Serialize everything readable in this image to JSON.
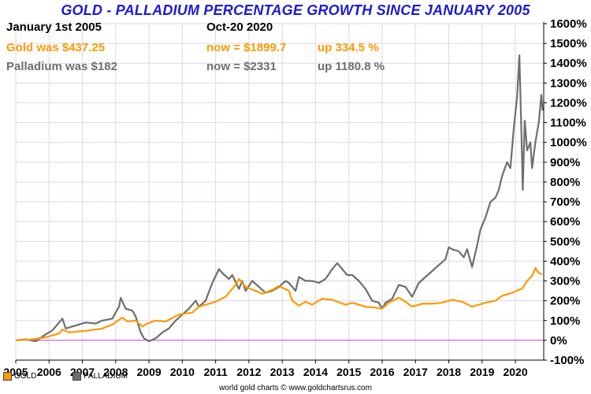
{
  "title": "GOLD - PALLADIUM PERCENTAGE GROWTH SINCE JANUARY 2005",
  "info": {
    "start_label": "January 1st 2005",
    "end_label": "Oct-20  2020",
    "gold_was": "Gold was $437.25",
    "gold_now": "now = $1899.7",
    "gold_up": "up 334.5 %",
    "pall_was": "Palladium was $182",
    "pall_now": "now = $2331",
    "pall_up": "up 1180.8 %"
  },
  "credit": "world gold charts © www.goldchartsrus.com",
  "colors": {
    "gold": "#ff9900",
    "palladium": "#6e6e6e",
    "zero_line": "#cc44cc",
    "grid": "#d9d9f0",
    "title": "#1a1ad6"
  },
  "chart_data": {
    "type": "line",
    "title": "GOLD - PALLADIUM PERCENTAGE GROWTH SINCE JANUARY 2005",
    "xlabel": "",
    "ylabel": "",
    "xlim": [
      2005,
      2020.85
    ],
    "ylim": [
      -100,
      1600
    ],
    "x_ticks": [
      2005,
      2006,
      2007,
      2008,
      2009,
      2010,
      2011,
      2012,
      2013,
      2014,
      2015,
      2016,
      2017,
      2018,
      2019,
      2020
    ],
    "y_ticks": [
      -100,
      0,
      100,
      200,
      300,
      400,
      500,
      600,
      700,
      800,
      900,
      1000,
      1100,
      1200,
      1300,
      1400,
      1500,
      1600
    ],
    "y_tick_suffix": "%",
    "legend": [
      "GOLD",
      "PALLADIUM"
    ],
    "legend_position": "bottom-left",
    "series": [
      {
        "name": "GOLD",
        "points": [
          [
            2005.0,
            0
          ],
          [
            2005.5,
            5
          ],
          [
            2005.9,
            15
          ],
          [
            2006.3,
            35
          ],
          [
            2006.4,
            55
          ],
          [
            2006.6,
            40
          ],
          [
            2006.9,
            45
          ],
          [
            2007.2,
            50
          ],
          [
            2007.6,
            60
          ],
          [
            2007.9,
            80
          ],
          [
            2008.2,
            115
          ],
          [
            2008.35,
            95
          ],
          [
            2008.6,
            100
          ],
          [
            2008.8,
            70
          ],
          [
            2008.95,
            85
          ],
          [
            2009.2,
            100
          ],
          [
            2009.5,
            95
          ],
          [
            2009.9,
            130
          ],
          [
            2010.3,
            140
          ],
          [
            2010.5,
            170
          ],
          [
            2010.8,
            185
          ],
          [
            2011.0,
            195
          ],
          [
            2011.3,
            220
          ],
          [
            2011.6,
            280
          ],
          [
            2011.7,
            310
          ],
          [
            2011.9,
            270
          ],
          [
            2012.2,
            250
          ],
          [
            2012.4,
            235
          ],
          [
            2012.7,
            255
          ],
          [
            2012.9,
            275
          ],
          [
            2013.2,
            250
          ],
          [
            2013.3,
            200
          ],
          [
            2013.5,
            175
          ],
          [
            2013.7,
            195
          ],
          [
            2013.9,
            180
          ],
          [
            2014.2,
            210
          ],
          [
            2014.5,
            205
          ],
          [
            2014.9,
            180
          ],
          [
            2015.1,
            190
          ],
          [
            2015.5,
            170
          ],
          [
            2015.8,
            165
          ],
          [
            2016.0,
            160
          ],
          [
            2016.2,
            190
          ],
          [
            2016.5,
            215
          ],
          [
            2016.7,
            195
          ],
          [
            2016.9,
            170
          ],
          [
            2017.2,
            185
          ],
          [
            2017.5,
            185
          ],
          [
            2017.8,
            190
          ],
          [
            2018.1,
            205
          ],
          [
            2018.4,
            195
          ],
          [
            2018.7,
            170
          ],
          [
            2018.9,
            180
          ],
          [
            2019.1,
            190
          ],
          [
            2019.4,
            200
          ],
          [
            2019.6,
            225
          ],
          [
            2019.9,
            240
          ],
          [
            2020.1,
            255
          ],
          [
            2020.2,
            260
          ],
          [
            2020.35,
            300
          ],
          [
            2020.5,
            325
          ],
          [
            2020.6,
            365
          ],
          [
            2020.7,
            340
          ],
          [
            2020.8,
            335
          ]
        ]
      },
      {
        "name": "PALLADIUM",
        "points": [
          [
            2005.0,
            0
          ],
          [
            2005.3,
            5
          ],
          [
            2005.6,
            -5
          ],
          [
            2005.9,
            30
          ],
          [
            2006.1,
            50
          ],
          [
            2006.3,
            90
          ],
          [
            2006.4,
            110
          ],
          [
            2006.5,
            60
          ],
          [
            2006.7,
            70
          ],
          [
            2006.9,
            80
          ],
          [
            2007.1,
            90
          ],
          [
            2007.4,
            85
          ],
          [
            2007.6,
            100
          ],
          [
            2007.9,
            110
          ],
          [
            2008.0,
            140
          ],
          [
            2008.1,
            170
          ],
          [
            2008.15,
            215
          ],
          [
            2008.3,
            160
          ],
          [
            2008.5,
            150
          ],
          [
            2008.6,
            120
          ],
          [
            2008.75,
            40
          ],
          [
            2008.85,
            10
          ],
          [
            2009.0,
            -5
          ],
          [
            2009.2,
            10
          ],
          [
            2009.4,
            40
          ],
          [
            2009.6,
            60
          ],
          [
            2009.8,
            100
          ],
          [
            2010.0,
            130
          ],
          [
            2010.2,
            160
          ],
          [
            2010.4,
            200
          ],
          [
            2010.5,
            170
          ],
          [
            2010.7,
            200
          ],
          [
            2010.9,
            290
          ],
          [
            2011.1,
            360
          ],
          [
            2011.2,
            340
          ],
          [
            2011.4,
            310
          ],
          [
            2011.5,
            330
          ],
          [
            2011.7,
            260
          ],
          [
            2011.8,
            300
          ],
          [
            2011.9,
            250
          ],
          [
            2012.1,
            300
          ],
          [
            2012.3,
            270
          ],
          [
            2012.5,
            240
          ],
          [
            2012.7,
            250
          ],
          [
            2012.9,
            270
          ],
          [
            2013.1,
            300
          ],
          [
            2013.2,
            290
          ],
          [
            2013.4,
            250
          ],
          [
            2013.5,
            320
          ],
          [
            2013.7,
            300
          ],
          [
            2013.9,
            300
          ],
          [
            2014.1,
            290
          ],
          [
            2014.3,
            310
          ],
          [
            2014.5,
            360
          ],
          [
            2014.65,
            390
          ],
          [
            2014.8,
            360
          ],
          [
            2014.95,
            330
          ],
          [
            2015.1,
            330
          ],
          [
            2015.3,
            300
          ],
          [
            2015.5,
            260
          ],
          [
            2015.7,
            200
          ],
          [
            2015.9,
            190
          ],
          [
            2016.0,
            160
          ],
          [
            2016.1,
            190
          ],
          [
            2016.3,
            210
          ],
          [
            2016.5,
            280
          ],
          [
            2016.7,
            270
          ],
          [
            2016.9,
            220
          ],
          [
            2017.1,
            290
          ],
          [
            2017.3,
            320
          ],
          [
            2017.5,
            350
          ],
          [
            2017.7,
            380
          ],
          [
            2017.9,
            410
          ],
          [
            2018.0,
            470
          ],
          [
            2018.1,
            460
          ],
          [
            2018.3,
            450
          ],
          [
            2018.45,
            420
          ],
          [
            2018.55,
            460
          ],
          [
            2018.7,
            370
          ],
          [
            2018.85,
            480
          ],
          [
            2018.95,
            560
          ],
          [
            2019.1,
            620
          ],
          [
            2019.25,
            700
          ],
          [
            2019.4,
            720
          ],
          [
            2019.5,
            760
          ],
          [
            2019.6,
            830
          ],
          [
            2019.75,
            900
          ],
          [
            2019.85,
            870
          ],
          [
            2019.95,
            1070
          ],
          [
            2020.05,
            1230
          ],
          [
            2020.12,
            1440
          ],
          [
            2020.18,
            1050
          ],
          [
            2020.22,
            760
          ],
          [
            2020.28,
            1110
          ],
          [
            2020.35,
            960
          ],
          [
            2020.45,
            1000
          ],
          [
            2020.5,
            870
          ],
          [
            2020.6,
            1000
          ],
          [
            2020.7,
            1100
          ],
          [
            2020.78,
            1240
          ],
          [
            2020.82,
            1160
          ]
        ]
      }
    ]
  }
}
